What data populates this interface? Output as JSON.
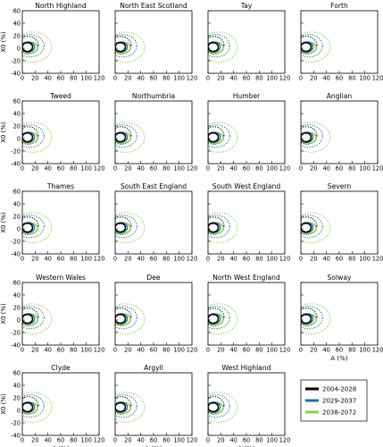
{
  "chart_data": [
    {
      "type": "line",
      "title": "North Highland"
    },
    {
      "type": "line",
      "title": "North East Scotland"
    },
    {
      "type": "line",
      "title": "Tay"
    },
    {
      "type": "line",
      "title": "Forth"
    },
    {
      "type": "line",
      "title": "Tweed"
    },
    {
      "type": "line",
      "title": "Northumbria"
    },
    {
      "type": "line",
      "title": "Humber"
    },
    {
      "type": "line",
      "title": "Anglian"
    },
    {
      "type": "line",
      "title": "Thames"
    },
    {
      "type": "line",
      "title": "South East England"
    },
    {
      "type": "line",
      "title": "South West England"
    },
    {
      "type": "line",
      "title": "Severn"
    },
    {
      "type": "line",
      "title": "Western Wales"
    },
    {
      "type": "line",
      "title": "Dee"
    },
    {
      "type": "line",
      "title": "North West England"
    },
    {
      "type": "line",
      "title": "Solway"
    },
    {
      "type": "line",
      "title": "Clyde"
    },
    {
      "type": "line",
      "title": "Argyll"
    },
    {
      "type": "line",
      "title": "West Highland"
    }
  ],
  "axes": {
    "xlabel": "A (%)",
    "ylabel": "X0 (%)",
    "xlim": [
      0,
      120
    ],
    "ylim": [
      -40,
      60
    ],
    "xticks": [
      0,
      20,
      40,
      60,
      80,
      100,
      120
    ],
    "yticks": [
      -40,
      -20,
      0,
      20,
      40,
      60
    ],
    "grid": false
  },
  "series": [
    {
      "name": "2004-2028",
      "color": "#000000"
    },
    {
      "name": "2029-2037",
      "color": "#1f6fa8"
    },
    {
      "name": "2038-2072",
      "color": "#8fce3c"
    }
  ],
  "legend": {
    "placement": "bottom-right"
  }
}
